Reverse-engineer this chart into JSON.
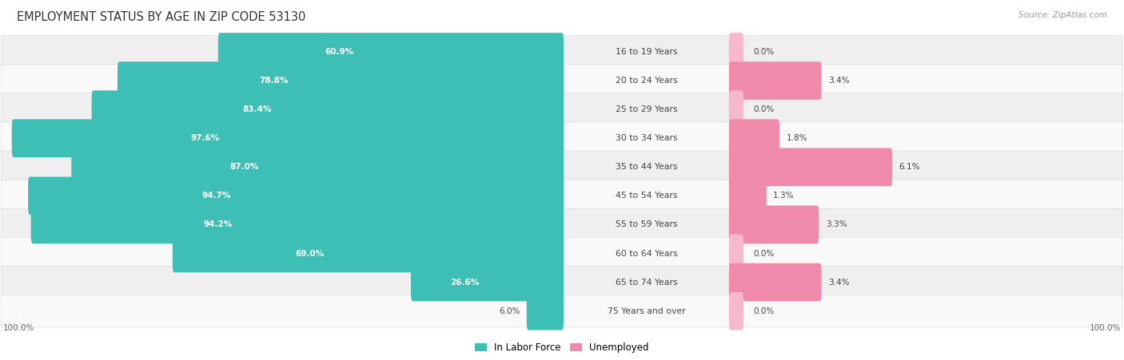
{
  "title": "EMPLOYMENT STATUS BY AGE IN ZIP CODE 53130",
  "source": "Source: ZipAtlas.com",
  "categories": [
    "16 to 19 Years",
    "20 to 24 Years",
    "25 to 29 Years",
    "30 to 34 Years",
    "35 to 44 Years",
    "45 to 54 Years",
    "55 to 59 Years",
    "60 to 64 Years",
    "65 to 74 Years",
    "75 Years and over"
  ],
  "labor_force": [
    60.9,
    78.8,
    83.4,
    97.6,
    87.0,
    94.7,
    94.2,
    69.0,
    26.6,
    6.0
  ],
  "unemployed": [
    0.0,
    3.4,
    0.0,
    1.8,
    6.1,
    1.3,
    3.3,
    0.0,
    3.4,
    0.0
  ],
  "labor_color": "#3ebfb5",
  "unemployed_color": "#f08aaa",
  "unemployed_color_pale": "#f5b8cc",
  "row_bg_even": "#efefef",
  "row_bg_odd": "#f9f9f9",
  "label_color": "#444444",
  "white_label_color": "#ffffff",
  "title_color": "#333333",
  "source_color": "#999999",
  "axis_label_color": "#666666",
  "max_lf": 100.0,
  "max_unemp_display": 15.0,
  "fig_width": 14.06,
  "fig_height": 4.51
}
